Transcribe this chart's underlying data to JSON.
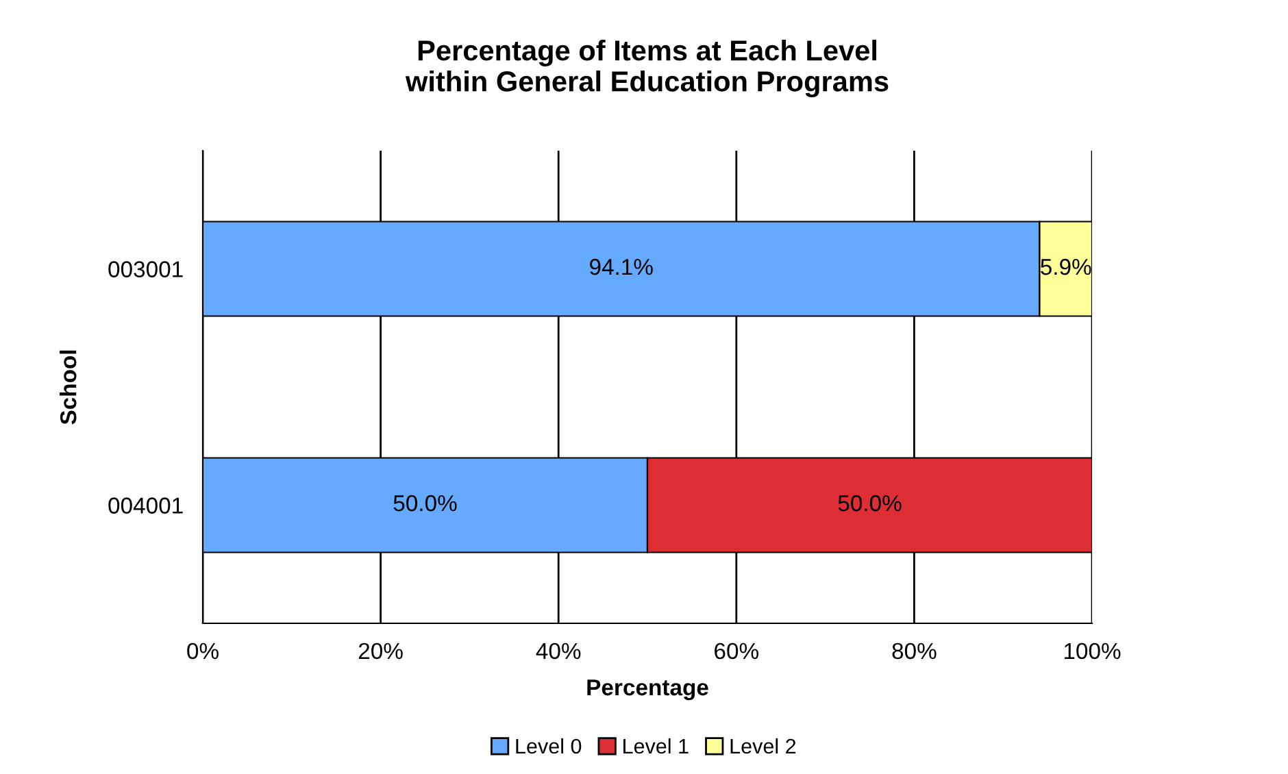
{
  "chart_data": {
    "type": "bar",
    "orientation": "horizontal",
    "stacked": true,
    "title": "Percentage of Items at Each Level\nwithin General Education Programs",
    "xlabel": "Percentage",
    "ylabel": "School",
    "categories": [
      "003001",
      "004001"
    ],
    "series": [
      {
        "name": "Level 0",
        "color": "#66aaff",
        "values": [
          94.1,
          50.0
        ],
        "value_labels": [
          "94.1%",
          "50.0%"
        ]
      },
      {
        "name": "Level 1",
        "color": "#dd2f33",
        "values": [
          null,
          50.0
        ],
        "value_labels": [
          null,
          "50.0%"
        ]
      },
      {
        "name": "Level 2",
        "color": "#ffff99",
        "values": [
          5.9,
          null
        ],
        "value_labels": [
          "5.9%",
          null
        ]
      }
    ],
    "xlim": [
      0,
      100
    ],
    "xticks": [
      {
        "value": 0,
        "label": "0%"
      },
      {
        "value": 20,
        "label": "20%"
      },
      {
        "value": 40,
        "label": "40%"
      },
      {
        "value": 60,
        "label": "60%"
      },
      {
        "value": 80,
        "label": "80%"
      },
      {
        "value": 100,
        "label": "100%"
      }
    ],
    "grid": "x",
    "legend": "bottom"
  }
}
